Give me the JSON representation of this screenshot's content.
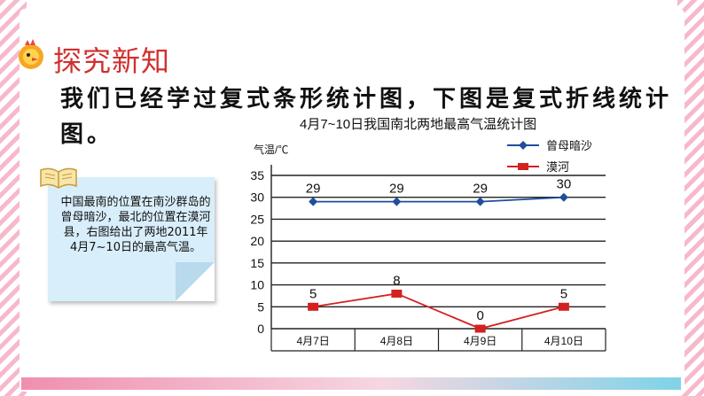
{
  "slide": {
    "heading": "探究新知",
    "intro": "我们已经学过复式条形统计图，下图是复式折线统计图。",
    "note": "中国最南的位置在南沙群岛的曾母暗沙，最北的位置在漠河县，右图给出了两地2011年4月7~10日的最高气温。"
  },
  "colors": {
    "heading": "#d0302f",
    "series1": "#1f4e9b",
    "series2": "#d42020",
    "note_bg": "#d8eefa"
  },
  "chart_data": {
    "type": "line",
    "title": "4月7~10日我国南北两地最高气温统计图",
    "ylabel": "气温/℃",
    "xlabel": "",
    "categories": [
      "4月7日",
      "4月8日",
      "4月9日",
      "4月10日"
    ],
    "ylim": [
      0,
      35
    ],
    "yticks": [
      0,
      5,
      10,
      15,
      20,
      25,
      30,
      35
    ],
    "grid": true,
    "legend_position": "top-right",
    "series": [
      {
        "name": "曾母暗沙",
        "values": [
          29,
          29,
          29,
          30
        ],
        "color": "#1f4e9b",
        "marker": "diamond"
      },
      {
        "name": "漠河",
        "values": [
          5,
          8,
          0,
          5
        ],
        "color": "#d42020",
        "marker": "square"
      }
    ]
  }
}
